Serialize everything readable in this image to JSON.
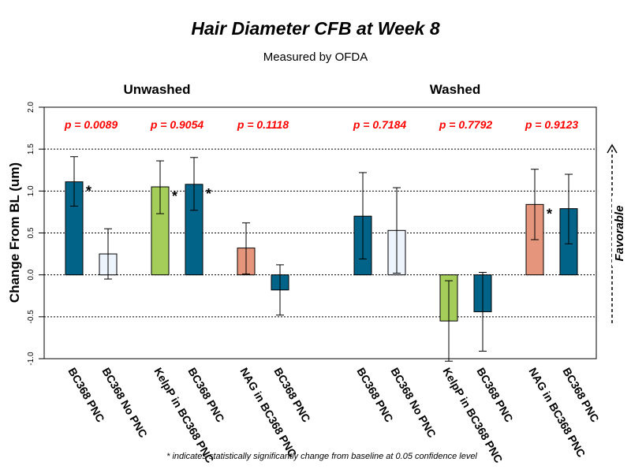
{
  "chart_data": {
    "type": "bar",
    "title": "Hair Diameter CFB at Week 8",
    "subtitle": "Measured by OFDA",
    "ylabel": "Change From BL (um)",
    "ylim": [
      -1.0,
      2.0
    ],
    "yticks": [
      "-1.0",
      "-0.5",
      "0.0",
      "0.5",
      "1.0",
      "1.5",
      "2.0"
    ],
    "grid": "dotted horizontal at -0.5, 0, 0.5, 1.0, 1.5",
    "favorable_label": "Favorable",
    "footnote": "* indicates statistically significantly change from baseline at 0.05 confidence level",
    "colors": {
      "teal": "#006387",
      "pale": "#eef4fb",
      "green": "#a5cd5a",
      "salmon": "#e6957d",
      "pvalue": "#ff0000"
    },
    "groups": [
      {
        "label": "Unwashed",
        "pairs": [
          {
            "p": "p = 0.0089",
            "bars": [
              {
                "label": "BC368 PNC",
                "value": 1.11,
                "lower": 0.82,
                "upper": 1.41,
                "color": "teal",
                "sig": "*"
              },
              {
                "label": "BC368 No PNC",
                "value": 0.25,
                "lower": -0.05,
                "upper": 0.55,
                "color": "pale",
                "sig": ""
              }
            ]
          },
          {
            "p": "p = 0.9054",
            "bars": [
              {
                "label": "KelpP in BC368 PNC",
                "value": 1.05,
                "lower": 0.73,
                "upper": 1.36,
                "color": "green",
                "sig": "*"
              },
              {
                "label": "BC368 PNC",
                "value": 1.08,
                "lower": 0.77,
                "upper": 1.4,
                "color": "teal",
                "sig": "*"
              }
            ]
          },
          {
            "p": "p = 0.1118",
            "bars": [
              {
                "label": "NAG in BC368 PNC",
                "value": 0.32,
                "lower": 0.01,
                "upper": 0.62,
                "color": "salmon",
                "sig": ""
              },
              {
                "label": "BC368 PNC",
                "value": -0.18,
                "lower": -0.48,
                "upper": 0.12,
                "color": "teal",
                "sig": ""
              }
            ]
          }
        ]
      },
      {
        "label": "Washed",
        "pairs": [
          {
            "p": "p = 0.7184",
            "bars": [
              {
                "label": "BC368 PNC",
                "value": 0.7,
                "lower": 0.19,
                "upper": 1.22,
                "color": "teal",
                "sig": ""
              },
              {
                "label": "BC368 No PNC",
                "value": 0.53,
                "lower": 0.02,
                "upper": 1.04,
                "color": "pale",
                "sig": ""
              }
            ]
          },
          {
            "p": "p = 0.7792",
            "bars": [
              {
                "label": "KelpP in BC368 PNC",
                "value": -0.55,
                "lower": -1.03,
                "upper": -0.07,
                "color": "green",
                "sig": ""
              },
              {
                "label": "BC368 PNC",
                "value": -0.44,
                "lower": -0.91,
                "upper": 0.03,
                "color": "teal",
                "sig": ""
              }
            ]
          },
          {
            "p": "p = 0.9123",
            "bars": [
              {
                "label": "NAG in BC368 PNC",
                "value": 0.84,
                "lower": 0.42,
                "upper": 1.26,
                "color": "salmon",
                "sig": "*"
              },
              {
                "label": "BC368 PNC",
                "value": 0.79,
                "lower": 0.37,
                "upper": 1.2,
                "color": "teal",
                "sig": ""
              }
            ]
          }
        ]
      }
    ]
  }
}
